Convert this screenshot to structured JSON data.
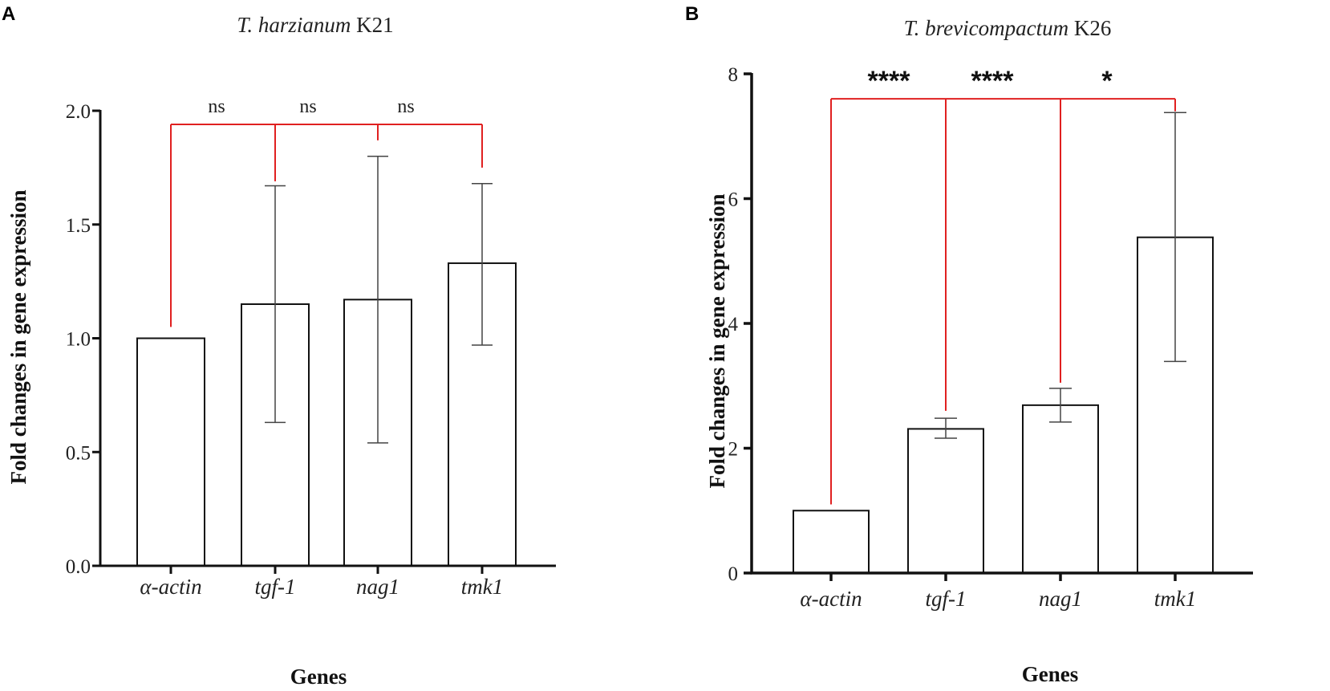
{
  "figure": {
    "panels": [
      {
        "label": "A",
        "title_italic": "T. harzianum",
        "title_plain": " K21",
        "xlabel": "Genes",
        "ylabel": "Fold changes in gene expression"
      },
      {
        "label": "B",
        "title_italic": "T. brevicompactum",
        "title_plain": " K26",
        "xlabel": "Genes",
        "ylabel": "Fold changes in gene expression"
      }
    ]
  },
  "colors": {
    "bar_fill": "#ffffff",
    "bar_stroke": "#111111",
    "error_bar": "#444444",
    "comparison_line": "#e02020"
  },
  "chart_data": [
    {
      "type": "bar",
      "title": "T. harzianum K21",
      "xlabel": "Genes",
      "ylabel": "Fold changes in gene expression",
      "categories": [
        "α-actin",
        "tgf-1",
        "nag1",
        "tmk1"
      ],
      "values": [
        1.0,
        1.15,
        1.17,
        1.33
      ],
      "error_low": [
        1.0,
        0.63,
        0.54,
        0.97
      ],
      "error_high": [
        1.0,
        1.67,
        1.8,
        1.68
      ],
      "ylim": [
        0,
        2.0
      ],
      "yticks": [
        "0.0",
        "0.5",
        "1.0",
        "1.5",
        "2.0"
      ],
      "ytick_values": [
        0,
        0.5,
        1.0,
        1.5,
        2.0
      ],
      "comparison": {
        "reference": "α-actin",
        "line_level": 1.94,
        "labels": [
          "ns",
          "ns",
          "ns"
        ]
      }
    },
    {
      "type": "bar",
      "title": "T. brevicompactum K26",
      "xlabel": "Genes",
      "ylabel": "Fold changes in gene expression",
      "categories": [
        "α-actin",
        "tgf-1",
        "nag1",
        "tmk1"
      ],
      "values": [
        1.0,
        2.31,
        2.69,
        5.38
      ],
      "error_low": [
        1.0,
        2.16,
        2.42,
        3.39
      ],
      "error_high": [
        1.0,
        2.48,
        2.96,
        7.38
      ],
      "ylim": [
        0,
        8
      ],
      "yticks": [
        "0",
        "2",
        "4",
        "6",
        "8"
      ],
      "ytick_values": [
        0,
        2,
        4,
        6,
        8
      ],
      "comparison": {
        "reference": "α-actin",
        "line_level": 7.6,
        "labels": [
          "****",
          "****",
          "*"
        ]
      }
    }
  ]
}
